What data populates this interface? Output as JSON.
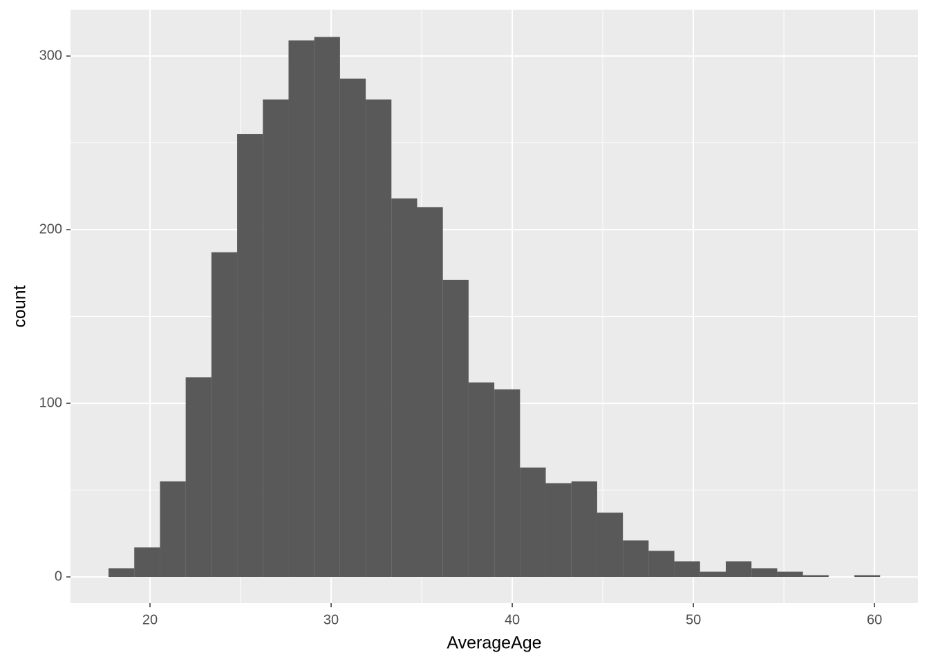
{
  "chart_data": {
    "type": "histogram",
    "x_label": "AverageAge",
    "y_label": "count",
    "bins": [
      17.71,
      19.13,
      20.55,
      21.97,
      23.39,
      24.81,
      26.23,
      27.65,
      29.07,
      30.49,
      31.91,
      33.33,
      34.75,
      36.17,
      37.59,
      39.01,
      40.43,
      41.85,
      43.27,
      44.69,
      46.11,
      47.53,
      48.95,
      50.37,
      51.79,
      53.21,
      54.63,
      56.05,
      57.47,
      58.89,
      60.31
    ],
    "values": [
      5,
      17,
      55,
      115,
      187,
      255,
      275,
      309,
      311,
      287,
      275,
      218,
      213,
      171,
      112,
      108,
      63,
      54,
      55,
      37,
      21,
      15,
      9,
      3,
      9,
      5,
      3,
      1,
      0,
      1
    ],
    "color": "#595959",
    "xlim": [
      15.61,
      62.4
    ],
    "xticks": [
      20,
      30,
      40,
      50,
      60
    ],
    "x_minor_ticks": [
      25,
      35,
      45,
      55
    ],
    "ylim": [
      -15.1,
      326.7
    ],
    "yticks": [
      0,
      100,
      200,
      300
    ],
    "y_minor_ticks": [
      50,
      150,
      250
    ],
    "grid": true
  }
}
